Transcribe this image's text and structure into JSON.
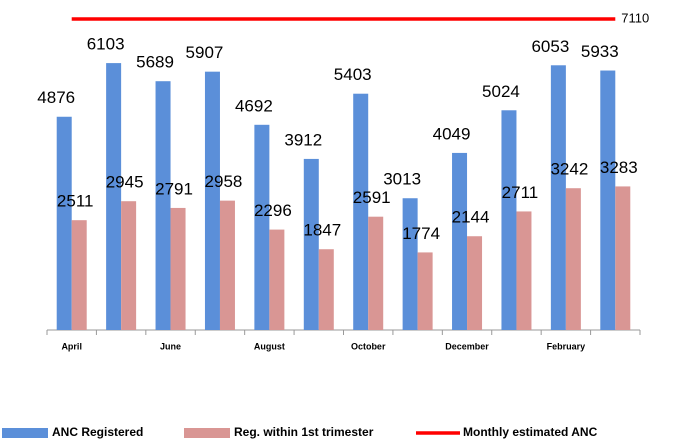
{
  "chart_data": {
    "type": "bar",
    "categories": [
      "April",
      null,
      "June",
      null,
      "August",
      null,
      "October",
      null,
      "December",
      null,
      "February",
      null
    ],
    "series": [
      {
        "name": "ANC Registered",
        "color": "#5b8fd9",
        "values": [
          4876,
          6103,
          5689,
          5907,
          4692,
          3912,
          5403,
          3013,
          4049,
          5024,
          6053,
          5933
        ]
      },
      {
        "name": "Reg. within 1st trimester",
        "color": "#d99694",
        "values": [
          2511,
          2945,
          2791,
          2958,
          2296,
          1847,
          2591,
          1774,
          2144,
          2711,
          3242,
          3283
        ]
      },
      {
        "name": "Monthly estimated ANC",
        "color": "#ff0000",
        "type": "line",
        "values": [
          7110,
          7110,
          7110,
          7110,
          7110,
          7110,
          7110,
          7110,
          7110,
          7110,
          7110,
          7110
        ]
      }
    ],
    "ylim": [
      0,
      7500
    ],
    "legend": "bottom"
  }
}
